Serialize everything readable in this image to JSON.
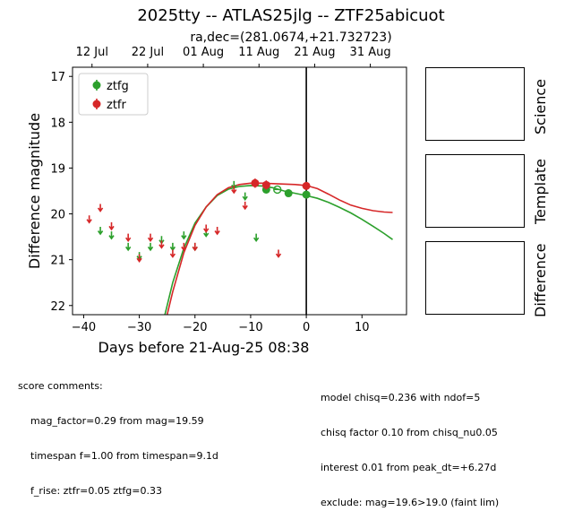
{
  "title": "2025tty -- ATLAS25jlg -- ZTF25abicuot",
  "subtitle": "ra,dec=(281.0674,+21.732723)",
  "colors": {
    "ztfg": "#2ca02c",
    "ztfr": "#d62728"
  },
  "chart_data": {
    "type": "scatter",
    "xlabel": "Days before 21-Aug-25 08:38",
    "ylabel": "Difference magnitude",
    "xlim": [
      -42,
      18
    ],
    "ylim": [
      22.2,
      16.8
    ],
    "x_ticks": [
      -40,
      -30,
      -20,
      -10,
      0,
      10
    ],
    "y_ticks": [
      17,
      18,
      19,
      20,
      21,
      22
    ],
    "top_ticks": [
      {
        "x": -38.5,
        "label": "12 Jul"
      },
      {
        "x": -28.5,
        "label": "22 Jul"
      },
      {
        "x": -18.5,
        "label": "01 Aug"
      },
      {
        "x": -8.5,
        "label": "11 Aug"
      },
      {
        "x": 1.5,
        "label": "21 Aug"
      },
      {
        "x": 11.5,
        "label": "31 Aug"
      }
    ],
    "vline_x": 0,
    "legend": {
      "placement": "top-left",
      "entries": [
        "ztfg",
        "ztfr"
      ]
    },
    "series": [
      {
        "name": "ztfg",
        "detections": [
          {
            "x": -7.2,
            "y": 19.47,
            "err": 0.06
          },
          {
            "x": -3.2,
            "y": 19.55,
            "err": 0.07
          },
          {
            "x": 0.0,
            "y": 19.58,
            "err": 0.05
          }
        ],
        "open_points": [
          {
            "x": -5.2,
            "y": 19.47
          }
        ],
        "limits": [
          {
            "x": -37.0,
            "y": 20.4
          },
          {
            "x": -35.0,
            "y": 20.5
          },
          {
            "x": -32.0,
            "y": 20.75
          },
          {
            "x": -30.0,
            "y": 20.95
          },
          {
            "x": -28.0,
            "y": 20.75
          },
          {
            "x": -26.0,
            "y": 20.6
          },
          {
            "x": -24.0,
            "y": 20.75
          },
          {
            "x": -22.0,
            "y": 20.5
          },
          {
            "x": -20.0,
            "y": 20.75
          },
          {
            "x": -18.0,
            "y": 20.45
          },
          {
            "x": -13.0,
            "y": 19.4
          },
          {
            "x": -11.0,
            "y": 19.65
          },
          {
            "x": -9.0,
            "y": 20.55
          }
        ],
        "model": [
          [
            -25.4,
            22.2
          ],
          [
            -24.0,
            21.5
          ],
          [
            -22.0,
            20.75
          ],
          [
            -20.0,
            20.2
          ],
          [
            -18.0,
            19.85
          ],
          [
            -16.0,
            19.6
          ],
          [
            -14.0,
            19.46
          ],
          [
            -12.0,
            19.4
          ],
          [
            -10.0,
            19.38
          ],
          [
            -8.0,
            19.39
          ],
          [
            -6.0,
            19.43
          ],
          [
            -4.0,
            19.5
          ],
          [
            -2.0,
            19.55
          ],
          [
            0.0,
            19.6
          ],
          [
            2.0,
            19.66
          ],
          [
            4.0,
            19.75
          ],
          [
            6.0,
            19.86
          ],
          [
            8.0,
            19.98
          ],
          [
            10.0,
            20.12
          ],
          [
            12.0,
            20.27
          ],
          [
            14.0,
            20.43
          ],
          [
            15.5,
            20.56
          ]
        ]
      },
      {
        "name": "ztfr",
        "detections": [
          {
            "x": -9.2,
            "y": 19.33,
            "err": 0.1
          },
          {
            "x": -7.2,
            "y": 19.37,
            "err": 0.1
          },
          {
            "x": 0.0,
            "y": 19.39,
            "err": 0.08
          }
        ],
        "limits": [
          {
            "x": -39.0,
            "y": 20.15
          },
          {
            "x": -37.0,
            "y": 19.9
          },
          {
            "x": -35.0,
            "y": 20.3
          },
          {
            "x": -32.0,
            "y": 20.55
          },
          {
            "x": -30.0,
            "y": 21.0
          },
          {
            "x": -28.0,
            "y": 20.55
          },
          {
            "x": -26.0,
            "y": 20.7
          },
          {
            "x": -24.0,
            "y": 20.9
          },
          {
            "x": -22.0,
            "y": 20.75
          },
          {
            "x": -20.0,
            "y": 20.75
          },
          {
            "x": -18.0,
            "y": 20.35
          },
          {
            "x": -16.0,
            "y": 20.4
          },
          {
            "x": -13.0,
            "y": 19.5
          },
          {
            "x": -11.0,
            "y": 19.85
          },
          {
            "x": -5.0,
            "y": 20.9
          }
        ],
        "model": [
          [
            -25.0,
            22.2
          ],
          [
            -24.0,
            21.7
          ],
          [
            -22.0,
            20.85
          ],
          [
            -20.0,
            20.25
          ],
          [
            -18.0,
            19.85
          ],
          [
            -16.0,
            19.58
          ],
          [
            -14.0,
            19.43
          ],
          [
            -12.0,
            19.36
          ],
          [
            -10.0,
            19.33
          ],
          [
            -8.0,
            19.33
          ],
          [
            -6.0,
            19.34
          ],
          [
            -4.0,
            19.35
          ],
          [
            -2.0,
            19.36
          ],
          [
            0.0,
            19.38
          ],
          [
            2.0,
            19.45
          ],
          [
            4.0,
            19.57
          ],
          [
            6.0,
            19.7
          ],
          [
            8.0,
            19.81
          ],
          [
            10.0,
            19.88
          ],
          [
            12.0,
            19.93
          ],
          [
            14.0,
            19.96
          ],
          [
            15.5,
            19.97
          ]
        ]
      }
    ]
  },
  "panels": [
    {
      "label": "Science"
    },
    {
      "label": "Template"
    },
    {
      "label": "Difference"
    }
  ],
  "comments_left": {
    "header": "score comments:",
    "lines": [
      "mag_factor=0.29 from mag=19.59",
      "timespan f=1.00 from timespan=9.1d",
      "f_rise: ztfr=0.05 ztfg=0.33"
    ]
  },
  "comments_right": {
    "lines": [
      "model chisq=0.236 with ndof=5",
      "chisq factor 0.10 from chisq_nu0.05",
      "interest 0.01 from peak_dt=+6.27d",
      "exclude: mag=19.6>19.0 (faint lim)"
    ]
  }
}
